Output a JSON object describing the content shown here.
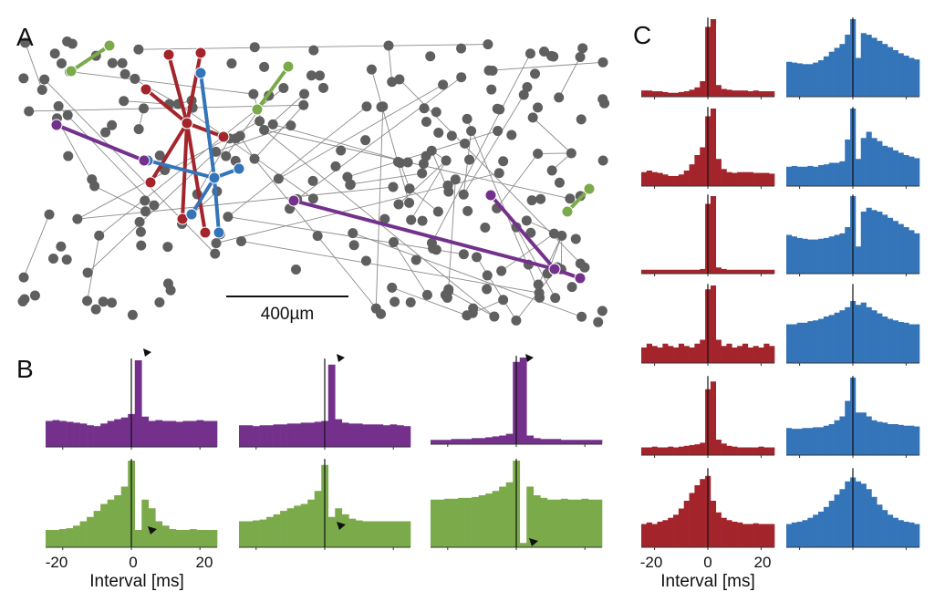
{
  "panels": {
    "a": "A",
    "b": "B",
    "c": "C"
  },
  "scale_bar": "400µm",
  "colors": {
    "node": "#5f5f5f",
    "edge": "#8a8a8a",
    "purple": "#74318c",
    "green": "#7aaa4a",
    "red": "#a3252b",
    "blue": "#3474b8"
  },
  "chart_data": [
    {
      "type": "bar",
      "panel": "B",
      "xlabel": "Interval [ms]",
      "xlim": [
        -25,
        25
      ],
      "xticks": [
        "-20",
        "0",
        "20"
      ],
      "bin_centers_ms": [
        -24,
        -22,
        -20,
        -18,
        -16,
        -14,
        -12,
        -10,
        -8,
        -6,
        -4,
        -2,
        0,
        2,
        4,
        6,
        8,
        10,
        12,
        14,
        16,
        18,
        20,
        22,
        24
      ],
      "series": [
        {
          "color": "purple",
          "values": [
            0.3,
            0.31,
            0.3,
            0.29,
            0.28,
            0.27,
            0.25,
            0.24,
            0.27,
            0.3,
            0.32,
            0.34,
            0.38,
            1.0,
            0.35,
            0.3,
            0.31,
            0.3,
            0.3,
            0.29,
            0.3,
            0.3,
            0.31,
            0.3,
            0.3
          ]
        },
        {
          "color": "purple",
          "values": [
            0.25,
            0.25,
            0.24,
            0.25,
            0.25,
            0.26,
            0.26,
            0.27,
            0.27,
            0.28,
            0.28,
            0.29,
            0.3,
            0.95,
            0.32,
            0.28,
            0.27,
            0.27,
            0.26,
            0.26,
            0.26,
            0.25,
            0.26,
            0.25,
            0.24
          ]
        },
        {
          "color": "purple",
          "values": [
            0.05,
            0.05,
            0.05,
            0.06,
            0.06,
            0.06,
            0.07,
            0.07,
            0.08,
            0.09,
            0.1,
            0.12,
            0.95,
            1.0,
            0.1,
            0.07,
            0.06,
            0.06,
            0.06,
            0.05,
            0.05,
            0.05,
            0.05,
            0.05,
            0.05
          ]
        },
        {
          "color": "green",
          "values": [
            0.2,
            0.2,
            0.21,
            0.22,
            0.25,
            0.3,
            0.35,
            0.42,
            0.5,
            0.55,
            0.6,
            0.7,
            1.0,
            0.2,
            0.55,
            0.45,
            0.3,
            0.25,
            0.21,
            0.2,
            0.2,
            0.21,
            0.2,
            0.2,
            0.2
          ]
        },
        {
          "color": "green",
          "values": [
            0.3,
            0.3,
            0.31,
            0.32,
            0.35,
            0.38,
            0.42,
            0.45,
            0.48,
            0.5,
            0.55,
            0.65,
            0.95,
            0.35,
            0.45,
            0.38,
            0.33,
            0.31,
            0.3,
            0.3,
            0.3,
            0.3,
            0.3,
            0.3,
            0.3
          ]
        },
        {
          "color": "green",
          "values": [
            0.55,
            0.55,
            0.56,
            0.56,
            0.57,
            0.57,
            0.58,
            0.6,
            0.62,
            0.65,
            0.7,
            0.75,
            1.0,
            0.05,
            0.7,
            0.6,
            0.57,
            0.55,
            0.55,
            0.56,
            0.55,
            0.55,
            0.56,
            0.55,
            0.55
          ]
        }
      ]
    },
    {
      "type": "bar",
      "panel": "C",
      "xlabel": "Interval [ms]",
      "xlim": [
        -25,
        25
      ],
      "xticks": [
        "-20",
        "0",
        "20"
      ],
      "bin_centers_ms": [
        -24,
        -22,
        -20,
        -18,
        -16,
        -14,
        -12,
        -10,
        -8,
        -6,
        -4,
        -2,
        0,
        2,
        4,
        6,
        8,
        10,
        12,
        14,
        16,
        18,
        20,
        22,
        24
      ],
      "series": [
        {
          "color": "red",
          "values": [
            0.08,
            0.08,
            0.07,
            0.07,
            0.06,
            0.05,
            0.05,
            0.06,
            0.07,
            0.09,
            0.12,
            0.2,
            0.9,
            1.0,
            0.15,
            0.1,
            0.09,
            0.08,
            0.08,
            0.08,
            0.07,
            0.08,
            0.07,
            0.07,
            0.07
          ]
        },
        {
          "color": "red",
          "values": [
            0.18,
            0.2,
            0.18,
            0.17,
            0.15,
            0.13,
            0.13,
            0.15,
            0.2,
            0.28,
            0.4,
            0.5,
            0.9,
            1.0,
            0.35,
            0.22,
            0.18,
            0.17,
            0.18,
            0.18,
            0.18,
            0.17,
            0.17,
            0.17,
            0.16
          ]
        },
        {
          "color": "red",
          "values": [
            0.05,
            0.05,
            0.05,
            0.05,
            0.05,
            0.05,
            0.05,
            0.05,
            0.05,
            0.05,
            0.05,
            0.06,
            0.9,
            1.0,
            0.08,
            0.06,
            0.05,
            0.05,
            0.05,
            0.05,
            0.05,
            0.05,
            0.05,
            0.05,
            0.05
          ]
        },
        {
          "color": "red",
          "values": [
            0.2,
            0.25,
            0.22,
            0.2,
            0.25,
            0.22,
            0.2,
            0.25,
            0.22,
            0.2,
            0.25,
            0.3,
            0.95,
            1.0,
            0.3,
            0.22,
            0.25,
            0.2,
            0.22,
            0.25,
            0.2,
            0.22,
            0.2,
            0.25,
            0.22
          ]
        },
        {
          "color": "red",
          "values": [
            0.1,
            0.1,
            0.11,
            0.1,
            0.1,
            0.11,
            0.1,
            0.11,
            0.12,
            0.13,
            0.14,
            0.16,
            0.85,
            0.95,
            0.2,
            0.15,
            0.12,
            0.11,
            0.1,
            0.1,
            0.1,
            0.1,
            0.11,
            0.1,
            0.1
          ]
        },
        {
          "color": "red",
          "values": [
            0.3,
            0.32,
            0.3,
            0.33,
            0.35,
            0.38,
            0.42,
            0.5,
            0.6,
            0.7,
            0.8,
            0.88,
            0.92,
            0.6,
            0.45,
            0.38,
            0.35,
            0.33,
            0.32,
            0.3,
            0.3,
            0.31,
            0.3,
            0.3,
            0.3
          ]
        },
        {
          "color": "blue",
          "values": [
            0.45,
            0.44,
            0.43,
            0.42,
            0.42,
            0.44,
            0.47,
            0.52,
            0.58,
            0.63,
            0.68,
            0.8,
            1.0,
            0.5,
            0.82,
            0.8,
            0.76,
            0.72,
            0.68,
            0.64,
            0.6,
            0.56,
            0.53,
            0.5,
            0.48
          ]
        },
        {
          "color": "blue",
          "values": [
            0.25,
            0.26,
            0.25,
            0.25,
            0.26,
            0.25,
            0.27,
            0.28,
            0.3,
            0.3,
            0.32,
            0.6,
            1.0,
            0.35,
            0.62,
            0.7,
            0.62,
            0.58,
            0.52,
            0.5,
            0.46,
            0.43,
            0.4,
            0.38,
            0.36
          ]
        },
        {
          "color": "blue",
          "values": [
            0.5,
            0.48,
            0.46,
            0.45,
            0.44,
            0.44,
            0.45,
            0.46,
            0.48,
            0.5,
            0.52,
            0.6,
            1.0,
            0.35,
            0.8,
            0.85,
            0.82,
            0.8,
            0.76,
            0.72,
            0.68,
            0.64,
            0.6,
            0.56,
            0.52
          ]
        },
        {
          "color": "blue",
          "values": [
            0.5,
            0.5,
            0.52,
            0.52,
            0.54,
            0.55,
            0.57,
            0.6,
            0.62,
            0.65,
            0.68,
            0.72,
            0.8,
            0.75,
            0.78,
            0.72,
            0.68,
            0.64,
            0.6,
            0.57,
            0.55,
            0.53,
            0.52,
            0.5,
            0.5
          ]
        },
        {
          "color": "blue",
          "values": [
            0.35,
            0.34,
            0.34,
            0.35,
            0.35,
            0.36,
            0.36,
            0.38,
            0.4,
            0.45,
            0.5,
            0.7,
            1.0,
            0.55,
            0.55,
            0.5,
            0.45,
            0.43,
            0.42,
            0.4,
            0.4,
            0.39,
            0.38,
            0.38,
            0.37
          ]
        },
        {
          "color": "blue",
          "values": [
            0.3,
            0.32,
            0.33,
            0.35,
            0.38,
            0.42,
            0.46,
            0.52,
            0.6,
            0.68,
            0.75,
            0.85,
            0.9,
            0.85,
            0.82,
            0.75,
            0.65,
            0.55,
            0.48,
            0.42,
            0.38,
            0.35,
            0.33,
            0.32,
            0.3
          ]
        }
      ]
    }
  ]
}
